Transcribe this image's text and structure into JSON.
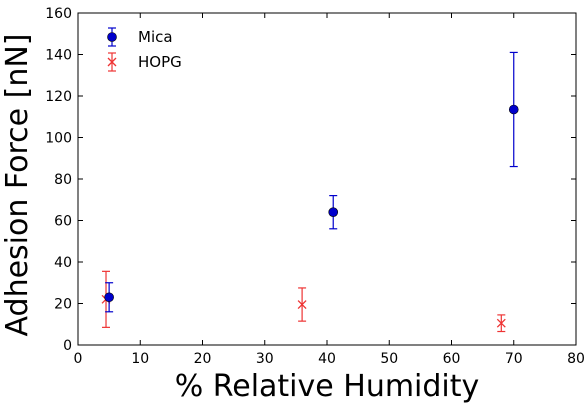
{
  "chart_data": {
    "type": "scatter",
    "xlabel": "% Relative Humidity",
    "ylabel": "Adhesion Force [nN]",
    "xlim": [
      0,
      80
    ],
    "ylim": [
      0,
      160
    ],
    "xticks": [
      0,
      10,
      20,
      30,
      40,
      50,
      60,
      70,
      80
    ],
    "yticks": [
      0,
      20,
      40,
      60,
      80,
      100,
      120,
      140,
      160
    ],
    "grid": false,
    "legend_position": "top-left",
    "series": [
      {
        "name": "Mica",
        "marker": "circle",
        "color": "#0000cc",
        "points": [
          {
            "x": 5,
            "y": 23,
            "err": 7
          },
          {
            "x": 41,
            "y": 64,
            "err": 8
          },
          {
            "x": 70,
            "y": 113.5,
            "err": 27.5
          }
        ]
      },
      {
        "name": "HOPG",
        "marker": "x",
        "color": "#ee3333",
        "points": [
          {
            "x": 4.5,
            "y": 22,
            "err": 13.5
          },
          {
            "x": 36,
            "y": 19.5,
            "err": 8
          },
          {
            "x": 68,
            "y": 10.5,
            "err": 4
          }
        ]
      }
    ]
  }
}
